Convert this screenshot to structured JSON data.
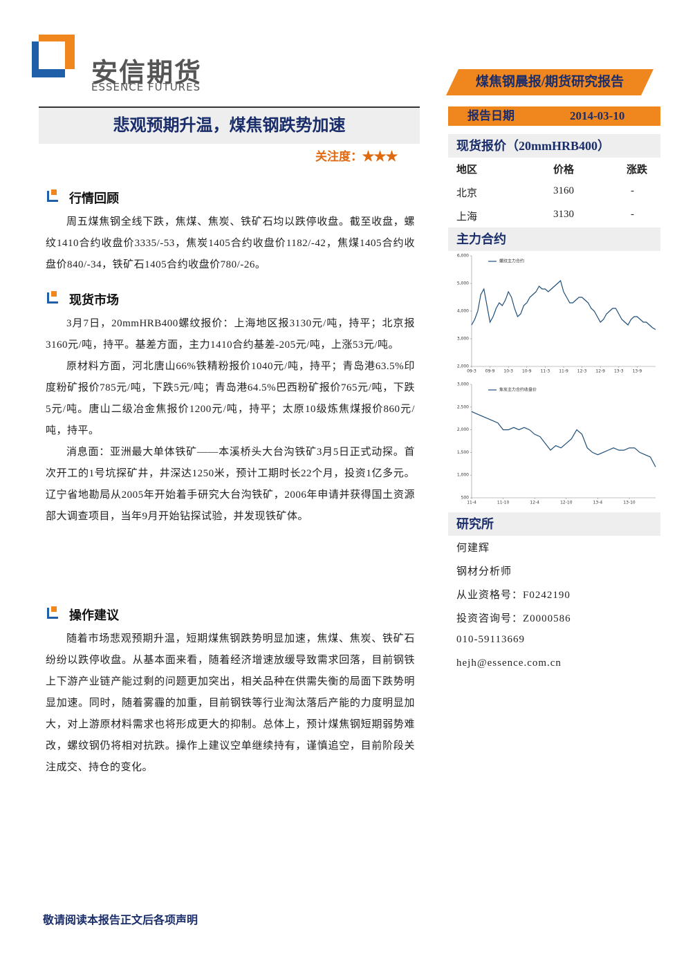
{
  "header": {
    "logo_cn": "安信期货",
    "logo_en": "ESSENCE FUTURES",
    "tag": "煤焦钢晨报/期货研究报告",
    "date_label": "报告日期",
    "date": "2014-03-10"
  },
  "title": "悲观预期升温，煤焦钢跌势加速",
  "attention": "关注度：★★★",
  "sections": [
    {
      "heading": "行情回顾",
      "paragraphs": [
        "周五煤焦钢全线下跌，焦煤、焦炭、铁矿石均以跌停收盘。截至收盘，螺纹1410合约收盘价3335/-53，焦炭1405合约收盘价1182/-42，焦煤1405合约收盘价840/-34，铁矿石1405合约收盘价780/-26。"
      ]
    },
    {
      "heading": "现货市场",
      "paragraphs": [
        "3月7日，20mmHRB400螺纹报价：上海地区报3130元/吨，持平；北京报3160元/吨，持平。基差方面，主力1410合约基差-205元/吨，上涨53元/吨。",
        "原材料方面，河北唐山66%铁精粉报价1040元/吨，持平；青岛港63.5%印度粉矿报价785元/吨，下跌5元/吨；青岛港64.5%巴西粉矿报价765元/吨，下跌5元/吨。唐山二级冶金焦报价1200元/吨，持平；太原10级炼焦煤报价860元/吨，持平。",
        "消息面：亚洲最大单体铁矿——本溪桥头大台沟铁矿3月5日正式动探。首次开工的1号坑探矿井，井深达1250米，预计工期时长22个月，投资1亿多元。辽宁省地勘局从2005年开始着手研究大台沟铁矿，2006年申请并获得国土资源部大调查项目，当年9月开始钻探试验，并发现铁矿体。"
      ]
    },
    {
      "heading": "操作建议",
      "paragraphs": [
        "随着市场悲观预期升温，短期煤焦钢跌势明显加速，焦煤、焦炭、铁矿石纷纷以跌停收盘。从基本面来看，随着经济增速放缓导致需求回落，目前钢铁上下游产业链产能过剩的问题更加突出，相关品种在供需失衡的局面下跌势明显加速。同时，随着雾霾的加重，目前钢铁等行业淘汰落后产能的力度明显加大，对上游原材料需求也将形成更大的抑制。总体上，预计煤焦钢短期弱势难改，螺纹钢仍将相对抗跌。操作上建议空单继续持有，谨慎追空，目前阶段关注成交、持仓的变化。"
      ]
    }
  ],
  "sidebar": {
    "spot": {
      "heading": "现货报价（20mmHRB400）",
      "columns": [
        "地区",
        "价格",
        "涨跌"
      ],
      "rows": [
        [
          "北京",
          3160,
          "-"
        ],
        [
          "上海",
          3130,
          "-"
        ]
      ]
    },
    "main_contract": "主力合约",
    "research": {
      "heading": "研究所",
      "lines": [
        "何建辉",
        "钢材分析师",
        "从业资格号：F0242190",
        "投资咨询号：Z0000586",
        "010-59113669",
        "hejh@essence.com.cn"
      ]
    }
  },
  "footer": "敬请阅读本报告正文后各项声明",
  "chart_data": [
    {
      "type": "line",
      "categories": [
        "09-3",
        null,
        null,
        null,
        null,
        null,
        "09-9",
        null,
        null,
        null,
        null,
        null,
        "10-3",
        null,
        null,
        null,
        null,
        null,
        "10-9",
        null,
        null,
        null,
        null,
        null,
        "11-3",
        null,
        null,
        null,
        null,
        null,
        "11-9",
        null,
        null,
        null,
        null,
        null,
        "12-3",
        null,
        null,
        null,
        null,
        null,
        "12-9",
        null,
        null,
        null,
        null,
        null,
        "13-3",
        null,
        null,
        null,
        null,
        null,
        "13-9",
        null,
        null,
        null,
        null,
        null,
        null
      ],
      "series": [
        {
          "name": "螺纹主力合约",
          "color": "#1f4e79",
          "values": [
            3500,
            3700,
            4000,
            4600,
            4800,
            4200,
            3600,
            3800,
            4100,
            4300,
            4200,
            4400,
            4700,
            4500,
            4100,
            3800,
            3900,
            4200,
            4300,
            4500,
            4600,
            4700,
            4900,
            4800,
            4800,
            4700,
            4800,
            4900,
            5000,
            5100,
            4700,
            4500,
            4300,
            4300,
            4400,
            4500,
            4500,
            4400,
            4300,
            4100,
            4000,
            3800,
            3600,
            3700,
            3900,
            4000,
            4100,
            4100,
            3900,
            3700,
            3600,
            3500,
            3700,
            3800,
            3800,
            3700,
            3600,
            3600,
            3500,
            3400,
            3335
          ]
        }
      ],
      "ylim": [
        2000,
        6000
      ],
      "yticks": [
        {
          "value": 2000,
          "label": "2,000"
        },
        {
          "value": 3000,
          "label": "3,000"
        },
        {
          "value": 4000,
          "label": "4,000"
        },
        {
          "value": 5000,
          "label": "5,000"
        },
        {
          "value": 6000,
          "label": "6,000"
        }
      ]
    },
    {
      "type": "line",
      "categories": [
        "11-4",
        null,
        null,
        null,
        null,
        null,
        "11-10",
        null,
        null,
        null,
        null,
        null,
        "12-4",
        null,
        null,
        null,
        null,
        null,
        "12-10",
        null,
        null,
        null,
        null,
        null,
        "13-4",
        null,
        null,
        null,
        null,
        null,
        "13-10",
        null,
        null,
        null,
        null,
        null
      ],
      "series": [
        {
          "name": "焦炭主力合约收盘价",
          "color": "#1f4e79",
          "values": [
            2400,
            2350,
            2300,
            2250,
            2200,
            2150,
            2000,
            2000,
            2050,
            2000,
            2050,
            2000,
            1900,
            1850,
            1700,
            1550,
            1650,
            1600,
            1700,
            1800,
            2000,
            1900,
            1600,
            1500,
            1450,
            1500,
            1550,
            1600,
            1550,
            1550,
            1600,
            1600,
            1500,
            1450,
            1400,
            1182
          ]
        }
      ],
      "ylim": [
        500,
        3000
      ],
      "yticks": [
        500,
        {
          "value": 1000,
          "label": "1,000"
        },
        {
          "value": 1500,
          "label": "1,500"
        },
        {
          "value": 2000,
          "label": "2,000"
        },
        {
          "value": 2500,
          "label": "2,500"
        },
        {
          "value": 3000,
          "label": "3,000"
        }
      ]
    }
  ]
}
